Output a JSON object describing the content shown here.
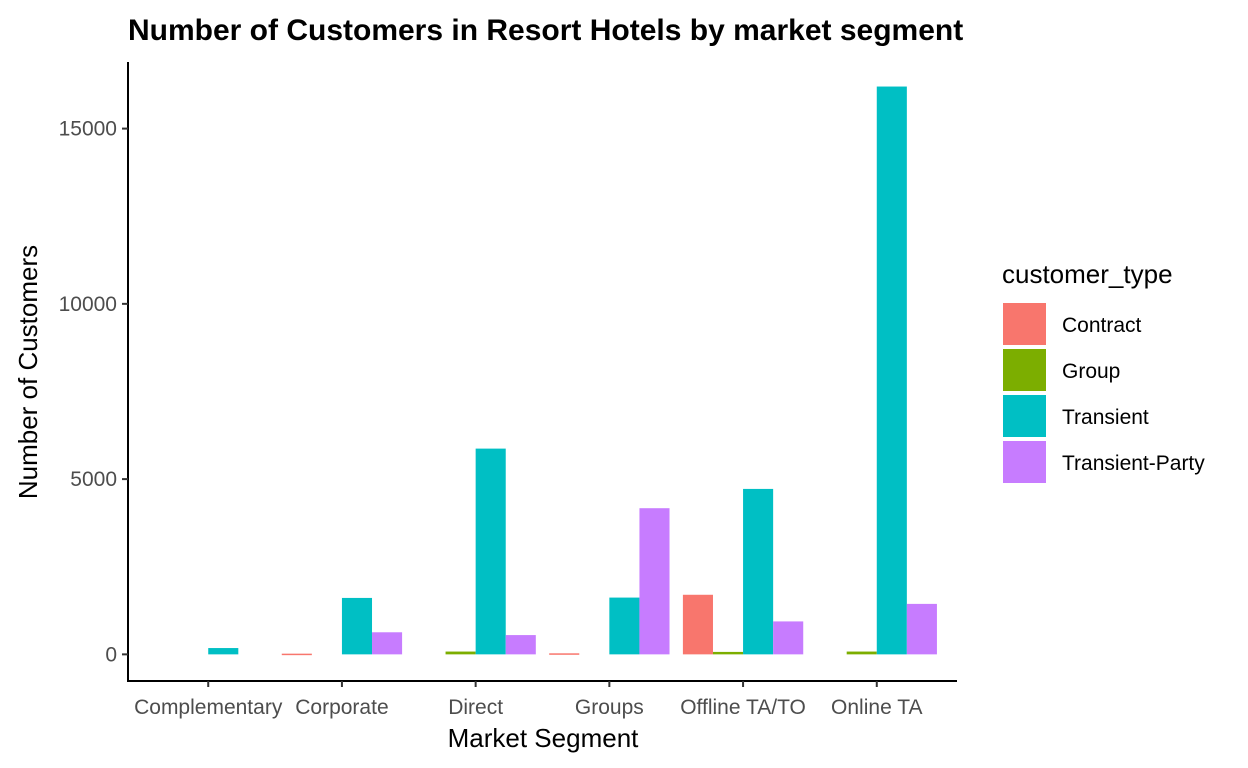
{
  "chart_data": {
    "type": "bar",
    "title": "Number of Customers in Resort Hotels by market segment",
    "xlabel": "Market Segment",
    "ylabel": "Number of Customers",
    "categories": [
      "Complementary",
      "Corporate",
      "Direct",
      "Groups",
      "Offline TA/TO",
      "Online TA"
    ],
    "ylim": [
      -760,
      16900
    ],
    "yticks": [
      0,
      5000,
      10000,
      15000
    ],
    "yticklabels": [
      "0",
      "5000",
      "10000",
      "15000"
    ],
    "grid": false,
    "legend": {
      "title": "customer_type",
      "placement": "right"
    },
    "series": [
      {
        "name": "Contract",
        "color": "#F8766D",
        "values": [
          null,
          20,
          null,
          30,
          1700,
          null
        ]
      },
      {
        "name": "Group",
        "color": "#7CAE00",
        "values": [
          null,
          null,
          80,
          null,
          70,
          80
        ]
      },
      {
        "name": "Transient",
        "color": "#00BFC4",
        "values": [
          180,
          1610,
          5870,
          1620,
          4720,
          16200
        ]
      },
      {
        "name": "Transient-Party",
        "color": "#C77CFF",
        "values": [
          null,
          630,
          550,
          4170,
          940,
          1440
        ]
      }
    ]
  }
}
